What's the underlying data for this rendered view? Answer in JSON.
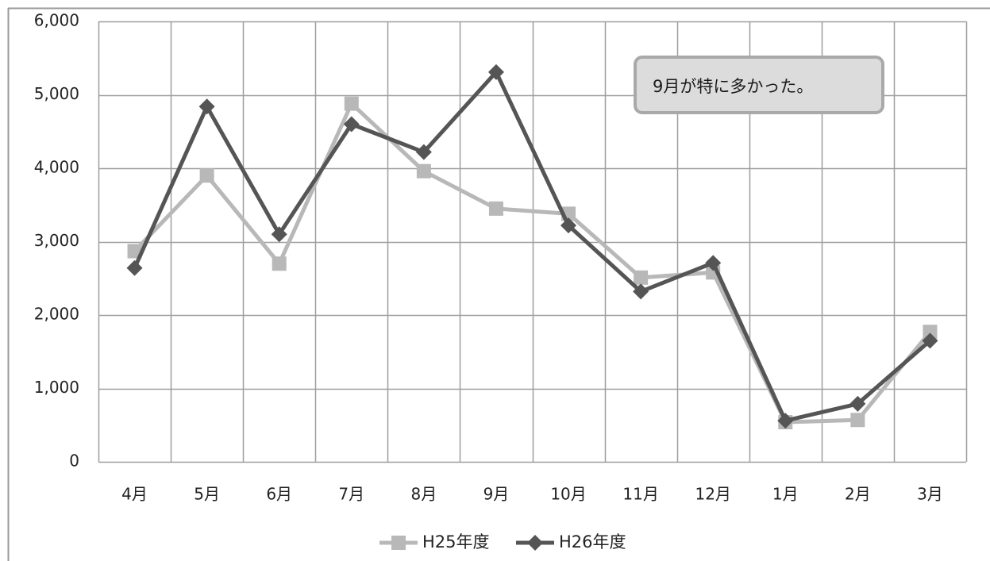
{
  "chart_data": {
    "type": "line",
    "title": "",
    "xlabel": "",
    "ylabel": "",
    "categories": [
      "4月",
      "5月",
      "6月",
      "7月",
      "8月",
      "9月",
      "10月",
      "11月",
      "12月",
      "1月",
      "2月",
      "3月"
    ],
    "y_ticks": [
      "0",
      "1,000",
      "2,000",
      "3,000",
      "4,000",
      "5,000",
      "6,000"
    ],
    "ylim": [
      0,
      6000
    ],
    "grid": true,
    "legend_position": "bottom",
    "series": [
      {
        "name": "H25年度",
        "marker": "square",
        "color": "#b8b8b8",
        "values": [
          2870,
          3900,
          2700,
          4880,
          3960,
          3450,
          3380,
          2510,
          2580,
          540,
          570,
          1770
        ]
      },
      {
        "name": "H26年度",
        "marker": "diamond",
        "color": "#555555",
        "values": [
          2640,
          4840,
          3100,
          4600,
          4220,
          5310,
          3220,
          2320,
          2710,
          560,
          790,
          1650
        ]
      }
    ],
    "annotation": {
      "text": "9月が特に多かった。"
    }
  }
}
